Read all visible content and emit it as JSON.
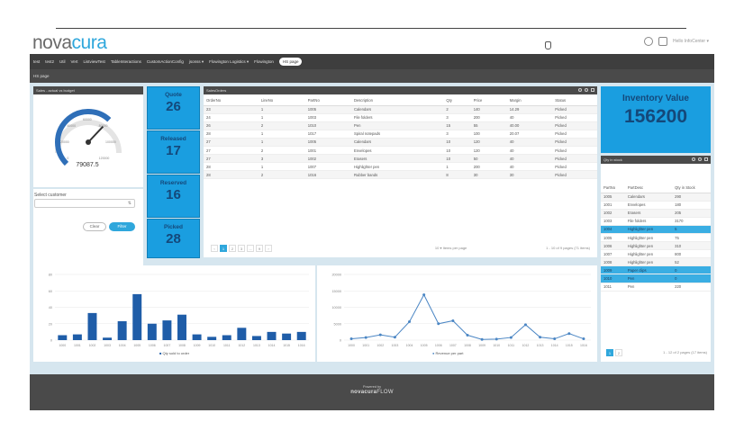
{
  "app": {
    "logo_main": "nova",
    "logo_accent": "cura",
    "user": "Hello InfoCenter ▾"
  },
  "nav": {
    "items": [
      "test",
      "test2",
      "Util",
      "Vert",
      "ListviewTest",
      "TableInteractions",
      "CustomActionConfig",
      "jsonss ▾",
      "Flowington Logistics ▾",
      "Flowington",
      "HS page"
    ],
    "active_index": 10
  },
  "subnav": {
    "label": "HS page"
  },
  "gauge": {
    "title": "Sales - actual vs budget",
    "value": "79087.5",
    "ticks": [
      "0",
      "20000",
      "40000",
      "60000",
      "80000",
      "100000",
      "120000"
    ],
    "level": 0.66
  },
  "customer": {
    "label": "Select customer",
    "value": "",
    "clear_label": "Clear",
    "filter_label": "Filter"
  },
  "kpis": [
    {
      "label": "Quote",
      "value": "26"
    },
    {
      "label": "Released",
      "value": "17"
    },
    {
      "label": "Reserved",
      "value": "16"
    },
    {
      "label": "Picked",
      "value": "28"
    }
  ],
  "sales_orders": {
    "title": "SalesOrders",
    "columns": [
      "OrderNo",
      "LineNo",
      "PartNo",
      "Description",
      "Qty",
      "Price",
      "Margin",
      "Status"
    ],
    "rows": [
      [
        "23",
        "1",
        "1005",
        "Calendars",
        "2",
        "140",
        "14.29",
        "Picked"
      ],
      [
        "24",
        "1",
        "1003",
        "File folders",
        "3",
        "200",
        "40",
        "Picked"
      ],
      [
        "26",
        "2",
        "1010",
        "Pen",
        "15",
        "55",
        "40.00",
        "Picked"
      ],
      [
        "28",
        "1",
        "1017",
        "Spiral notepads",
        "3",
        "100",
        "20.07",
        "Picked"
      ],
      [
        "27",
        "1",
        "1005",
        "Calendars",
        "10",
        "120",
        "40",
        "Picked"
      ],
      [
        "27",
        "2",
        "1001",
        "Envelopes",
        "10",
        "120",
        "40",
        "Picked"
      ],
      [
        "27",
        "3",
        "1002",
        "Erasers",
        "10",
        "50",
        "40",
        "Picked"
      ],
      [
        "28",
        "1",
        "1007",
        "Highlighter pen",
        "1",
        "200",
        "40",
        "Picked"
      ],
      [
        "28",
        "2",
        "1016",
        "Rubber bands",
        "8",
        "30",
        "30",
        "Picked"
      ]
    ],
    "pager": [
      "‹",
      "1",
      "2",
      "3",
      "...",
      "9",
      "›"
    ],
    "page_size": "10 ▾",
    "items_per_page": "Items per page",
    "info": "1 - 10 of 9 pages (71 items)"
  },
  "inventory": {
    "label": "Inventory Value",
    "value": "156200"
  },
  "stock": {
    "title": "Qty in stock",
    "columns": [
      "PartNo",
      "PartDesc",
      "Qty in Stock"
    ],
    "rows": [
      [
        "1005",
        "Calendars",
        "290"
      ],
      [
        "1001",
        "Envelopes",
        "180"
      ],
      [
        "1002",
        "Erasers",
        "205"
      ],
      [
        "1003",
        "File folders",
        "3170"
      ],
      [
        "1004",
        "Highlighter pen",
        "5"
      ],
      [
        "1005",
        "Highlighter pen",
        "75"
      ],
      [
        "1006",
        "Highlighter pen",
        "310"
      ],
      [
        "1007",
        "Highlighter pen",
        "800"
      ],
      [
        "1008",
        "Highlighter pen",
        "52"
      ],
      [
        "1009",
        "Paper clips",
        "0"
      ],
      [
        "1010",
        "Pen",
        "0"
      ],
      [
        "1011",
        "Pen",
        "220"
      ]
    ],
    "selected_rows": [
      4,
      9,
      10
    ],
    "pager": [
      "1",
      "2"
    ],
    "info": "1 - 12 of 2 pages (17 items)"
  },
  "chart_data": [
    {
      "type": "bar",
      "categories": [
        "1000",
        "1001",
        "1002",
        "1003",
        "1004",
        "1005",
        "1006",
        "1007",
        "1008",
        "1009",
        "1010",
        "1011",
        "1012",
        "1013",
        "1014",
        "1015",
        "1016"
      ],
      "series": [
        {
          "name": "Qty sold to order",
          "values": [
            6,
            7,
            33,
            3,
            23,
            56,
            20,
            24,
            31,
            7,
            4,
            6,
            15,
            5,
            10,
            8,
            10
          ]
        }
      ],
      "ylim": [
        0,
        80
      ],
      "yticks": [
        "0",
        "20",
        "40",
        "60",
        "80"
      ],
      "color": "#1f5da8"
    },
    {
      "type": "line",
      "x": [
        "1000",
        "1001",
        "1002",
        "1003",
        "1004",
        "1005",
        "1006",
        "1007",
        "1008",
        "1009",
        "1010",
        "1011",
        "1012",
        "1013",
        "1014",
        "1015",
        "1016"
      ],
      "series": [
        {
          "name": "Revenue per part",
          "values": [
            400,
            800,
            1600,
            900,
            5600,
            13800,
            5000,
            5900,
            1500,
            200,
            300,
            800,
            4700,
            900,
            400,
            2000,
            400
          ]
        }
      ],
      "ylim": [
        0,
        20000
      ],
      "yticks": [
        "0",
        "5000",
        "10000",
        "15000",
        "20000"
      ],
      "color": "#4b86c4"
    }
  ],
  "footer": {
    "powered_by": "Powered by",
    "brand_main": "novacura",
    "brand_accent": "FLOW"
  }
}
